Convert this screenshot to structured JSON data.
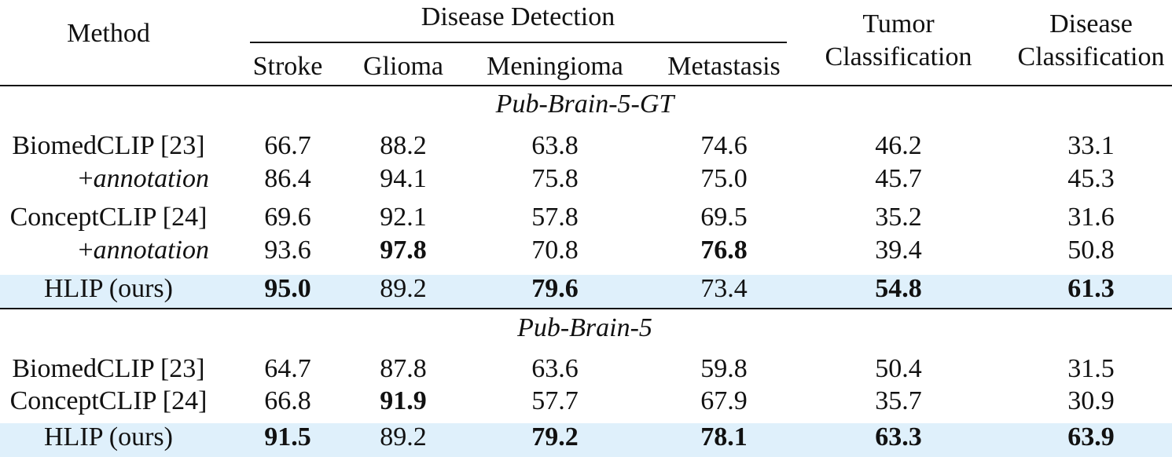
{
  "header": {
    "method": "Method",
    "group": "Disease Detection",
    "subcols": [
      "Stroke",
      "Glioma",
      "Meningioma",
      "Metastasis"
    ],
    "tumor": [
      "Tumor",
      "Classification"
    ],
    "disease": [
      "Disease",
      "Classification"
    ]
  },
  "sections": [
    {
      "title": "Pub-Brain-5-GT",
      "rows": [
        {
          "method": "BiomedCLIP [23]",
          "italic": false,
          "highlight": false,
          "values": [
            "66.7",
            "88.2",
            "63.8",
            "74.6",
            "46.2",
            "33.1"
          ],
          "bold": [
            false,
            false,
            false,
            false,
            false,
            false
          ]
        },
        {
          "method": "+annotation",
          "italic": true,
          "highlight": false,
          "values": [
            "86.4",
            "94.1",
            "75.8",
            "75.0",
            "45.7",
            "45.3"
          ],
          "bold": [
            false,
            false,
            false,
            false,
            false,
            false
          ]
        },
        {
          "method": "ConceptCLIP [24]",
          "italic": false,
          "highlight": false,
          "values": [
            "69.6",
            "92.1",
            "57.8",
            "69.5",
            "35.2",
            "31.6"
          ],
          "bold": [
            false,
            false,
            false,
            false,
            false,
            false
          ]
        },
        {
          "method": "+annotation",
          "italic": true,
          "highlight": false,
          "values": [
            "93.6",
            "97.8",
            "70.8",
            "76.8",
            "39.4",
            "50.8"
          ],
          "bold": [
            false,
            true,
            false,
            true,
            false,
            false
          ]
        },
        {
          "method": "HLIP (ours)",
          "italic": false,
          "highlight": true,
          "values": [
            "95.0",
            "89.2",
            "79.6",
            "73.4",
            "54.8",
            "61.3"
          ],
          "bold": [
            true,
            false,
            true,
            false,
            true,
            true
          ]
        }
      ]
    },
    {
      "title": "Pub-Brain-5",
      "rows": [
        {
          "method": "BiomedCLIP [23]",
          "italic": false,
          "highlight": false,
          "values": [
            "64.7",
            "87.8",
            "63.6",
            "59.8",
            "50.4",
            "31.5"
          ],
          "bold": [
            false,
            false,
            false,
            false,
            false,
            false
          ]
        },
        {
          "method": "ConceptCLIP [24]",
          "italic": false,
          "highlight": false,
          "values": [
            "66.8",
            "91.9",
            "57.7",
            "67.9",
            "35.7",
            "30.9"
          ],
          "bold": [
            false,
            true,
            false,
            false,
            false,
            false
          ]
        },
        {
          "method": "HLIP (ours)",
          "italic": false,
          "highlight": true,
          "values": [
            "91.5",
            "89.2",
            "79.2",
            "78.1",
            "63.3",
            "63.9"
          ],
          "bold": [
            true,
            false,
            true,
            true,
            true,
            true
          ]
        }
      ]
    }
  ]
}
